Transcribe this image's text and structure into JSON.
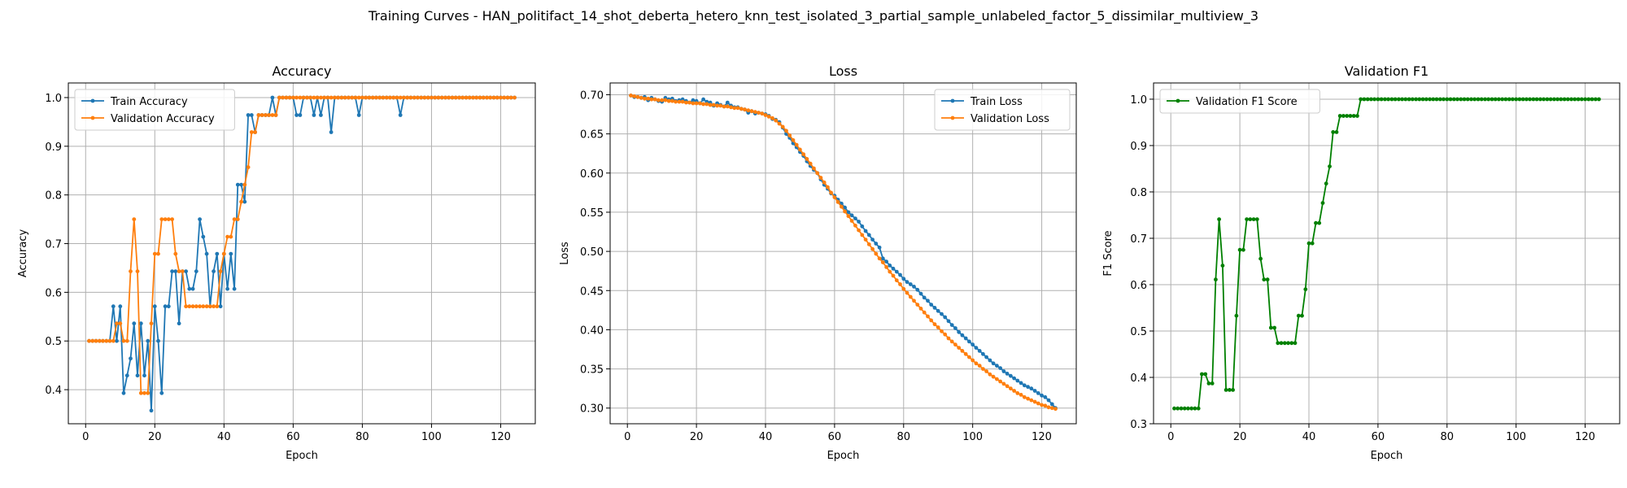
{
  "page_title": "Training Curves - HAN_politifact_14_shot_deberta_hetero_knn_test_isolated_3_partial_sample_unlabeled_factor_5_dissimilar_multiview_3",
  "chart_data": [
    {
      "type": "line",
      "title": "Accuracy",
      "xlabel": "Epoch",
      "ylabel": "Accuracy",
      "xlim": [
        -5,
        130
      ],
      "ylim": [
        0.33,
        1.03
      ],
      "xticks": [
        0,
        20,
        40,
        60,
        80,
        100,
        120
      ],
      "yticks": [
        0.4,
        0.5,
        0.6,
        0.7,
        0.8,
        0.9,
        1.0
      ],
      "ytick_labels": [
        "0.4",
        "0.5",
        "0.6",
        "0.7",
        "0.8",
        "0.9",
        "1.0"
      ],
      "grid": true,
      "legend": "upper-left",
      "x_start": 1,
      "series": [
        {
          "name": "Train Accuracy",
          "color": "#1f77b4",
          "values": [
            0.5,
            0.5,
            0.5,
            0.5,
            0.5,
            0.5,
            0.5,
            0.571,
            0.5,
            0.571,
            0.393,
            0.429,
            0.464,
            0.536,
            0.429,
            0.536,
            0.429,
            0.5,
            0.357,
            0.571,
            0.5,
            0.393,
            0.571,
            0.571,
            0.643,
            0.643,
            0.536,
            0.643,
            0.643,
            0.607,
            0.607,
            0.643,
            0.75,
            0.714,
            0.679,
            0.571,
            0.643,
            0.679,
            0.571,
            0.679,
            0.607,
            0.679,
            0.607,
            0.821,
            0.821,
            0.786,
            0.964,
            0.964,
            0.929,
            0.964,
            0.964,
            0.964,
            0.964,
            1.0,
            0.964,
            1.0,
            1.0,
            1.0,
            1.0,
            1.0,
            0.964,
            0.964,
            1.0,
            1.0,
            1.0,
            0.964,
            1.0,
            0.964,
            1.0,
            1.0,
            0.929,
            1.0,
            1.0,
            1.0,
            1.0,
            1.0,
            1.0,
            1.0,
            0.964,
            1.0,
            1.0,
            1.0,
            1.0,
            1.0,
            1.0,
            1.0,
            1.0,
            1.0,
            1.0,
            1.0,
            0.964,
            1.0,
            1.0,
            1.0,
            1.0,
            1.0,
            1.0,
            1.0,
            1.0,
            1.0,
            1.0,
            1.0,
            1.0,
            1.0,
            1.0,
            1.0,
            1.0,
            1.0,
            1.0,
            1.0,
            1.0,
            1.0,
            1.0,
            1.0,
            1.0,
            1.0,
            1.0,
            1.0,
            1.0,
            1.0,
            1.0,
            1.0,
            1.0,
            1.0
          ]
        },
        {
          "name": "Validation Accuracy",
          "color": "#ff7f0e",
          "values": [
            0.5,
            0.5,
            0.5,
            0.5,
            0.5,
            0.5,
            0.5,
            0.5,
            0.536,
            0.536,
            0.5,
            0.5,
            0.643,
            0.75,
            0.643,
            0.393,
            0.393,
            0.393,
            0.536,
            0.679,
            0.679,
            0.75,
            0.75,
            0.75,
            0.75,
            0.679,
            0.643,
            0.643,
            0.571,
            0.571,
            0.571,
            0.571,
            0.571,
            0.571,
            0.571,
            0.571,
            0.571,
            0.571,
            0.643,
            0.679,
            0.714,
            0.714,
            0.75,
            0.75,
            0.786,
            0.821,
            0.857,
            0.929,
            0.929,
            0.964,
            0.964,
            0.964,
            0.964,
            0.964,
            0.964,
            1.0,
            1.0,
            1.0,
            1.0,
            1.0,
            1.0,
            1.0,
            1.0,
            1.0,
            1.0,
            1.0,
            1.0,
            1.0,
            1.0,
            1.0,
            1.0,
            1.0,
            1.0,
            1.0,
            1.0,
            1.0,
            1.0,
            1.0,
            1.0,
            1.0,
            1.0,
            1.0,
            1.0,
            1.0,
            1.0,
            1.0,
            1.0,
            1.0,
            1.0,
            1.0,
            1.0,
            1.0,
            1.0,
            1.0,
            1.0,
            1.0,
            1.0,
            1.0,
            1.0,
            1.0,
            1.0,
            1.0,
            1.0,
            1.0,
            1.0,
            1.0,
            1.0,
            1.0,
            1.0,
            1.0,
            1.0,
            1.0,
            1.0,
            1.0,
            1.0,
            1.0,
            1.0,
            1.0,
            1.0,
            1.0,
            1.0,
            1.0,
            1.0,
            1.0
          ]
        }
      ]
    },
    {
      "type": "line",
      "title": "Loss",
      "xlabel": "Epoch",
      "ylabel": "Loss",
      "xlim": [
        -5,
        130
      ],
      "ylim": [
        0.28,
        0.715
      ],
      "xticks": [
        0,
        20,
        40,
        60,
        80,
        100,
        120
      ],
      "yticks": [
        0.3,
        0.35,
        0.4,
        0.45,
        0.5,
        0.55,
        0.6,
        0.65,
        0.7
      ],
      "ytick_labels": [
        "0.30",
        "0.35",
        "0.40",
        "0.45",
        "0.50",
        "0.55",
        "0.60",
        "0.65",
        "0.70"
      ],
      "grid": true,
      "legend": "upper-right",
      "x_start": 1,
      "series": [
        {
          "name": "Train Loss",
          "color": "#1f77b4",
          "values": [
            0.699,
            0.697,
            0.697,
            0.696,
            0.697,
            0.693,
            0.696,
            0.694,
            0.692,
            0.691,
            0.696,
            0.694,
            0.695,
            0.692,
            0.693,
            0.694,
            0.692,
            0.69,
            0.693,
            0.692,
            0.689,
            0.694,
            0.691,
            0.69,
            0.686,
            0.689,
            0.687,
            0.685,
            0.69,
            0.686,
            0.684,
            0.684,
            0.682,
            0.681,
            0.677,
            0.679,
            0.676,
            0.677,
            0.676,
            0.675,
            0.673,
            0.669,
            0.668,
            0.665,
            0.658,
            0.65,
            0.645,
            0.638,
            0.633,
            0.627,
            0.622,
            0.615,
            0.609,
            0.604,
            0.6,
            0.592,
            0.585,
            0.58,
            0.574,
            0.571,
            0.566,
            0.561,
            0.556,
            0.55,
            0.546,
            0.542,
            0.538,
            0.532,
            0.526,
            0.521,
            0.515,
            0.51,
            0.505,
            0.491,
            0.487,
            0.482,
            0.478,
            0.474,
            0.47,
            0.465,
            0.461,
            0.458,
            0.455,
            0.451,
            0.446,
            0.441,
            0.437,
            0.432,
            0.428,
            0.424,
            0.42,
            0.416,
            0.411,
            0.406,
            0.402,
            0.397,
            0.393,
            0.389,
            0.385,
            0.381,
            0.377,
            0.373,
            0.369,
            0.365,
            0.361,
            0.357,
            0.354,
            0.351,
            0.347,
            0.344,
            0.341,
            0.338,
            0.335,
            0.332,
            0.329,
            0.327,
            0.325,
            0.322,
            0.319,
            0.316,
            0.314,
            0.31,
            0.305,
            0.3
          ]
        },
        {
          "name": "Validation Loss",
          "color": "#ff7f0e",
          "values": [
            0.699,
            0.698,
            0.697,
            0.696,
            0.695,
            0.695,
            0.694,
            0.694,
            0.693,
            0.693,
            0.693,
            0.692,
            0.692,
            0.691,
            0.691,
            0.691,
            0.69,
            0.69,
            0.689,
            0.689,
            0.689,
            0.688,
            0.688,
            0.687,
            0.687,
            0.686,
            0.686,
            0.685,
            0.685,
            0.684,
            0.683,
            0.683,
            0.682,
            0.681,
            0.68,
            0.679,
            0.678,
            0.677,
            0.676,
            0.674,
            0.672,
            0.67,
            0.667,
            0.663,
            0.659,
            0.654,
            0.648,
            0.642,
            0.636,
            0.63,
            0.624,
            0.618,
            0.612,
            0.606,
            0.6,
            0.594,
            0.588,
            0.582,
            0.575,
            0.569,
            0.563,
            0.557,
            0.551,
            0.545,
            0.539,
            0.533,
            0.527,
            0.521,
            0.515,
            0.509,
            0.503,
            0.497,
            0.491,
            0.486,
            0.48,
            0.474,
            0.469,
            0.463,
            0.458,
            0.452,
            0.447,
            0.442,
            0.437,
            0.432,
            0.427,
            0.422,
            0.417,
            0.412,
            0.407,
            0.403,
            0.398,
            0.394,
            0.389,
            0.385,
            0.381,
            0.377,
            0.373,
            0.369,
            0.365,
            0.361,
            0.357,
            0.354,
            0.35,
            0.347,
            0.343,
            0.34,
            0.337,
            0.334,
            0.331,
            0.328,
            0.325,
            0.322,
            0.319,
            0.317,
            0.314,
            0.312,
            0.31,
            0.308,
            0.306,
            0.304,
            0.303,
            0.301,
            0.3,
            0.299
          ]
        }
      ]
    },
    {
      "type": "line",
      "title": "Validation F1",
      "xlabel": "Epoch",
      "ylabel": "F1 Score",
      "xlim": [
        -5,
        130
      ],
      "ylim": [
        0.3,
        1.035
      ],
      "xticks": [
        0,
        20,
        40,
        60,
        80,
        100,
        120
      ],
      "yticks": [
        0.3,
        0.4,
        0.5,
        0.6,
        0.7,
        0.8,
        0.9,
        1.0
      ],
      "ytick_labels": [
        "0.3",
        "0.4",
        "0.5",
        "0.6",
        "0.7",
        "0.8",
        "0.9",
        "1.0"
      ],
      "grid": true,
      "legend": "upper-left",
      "x_start": 1,
      "series": [
        {
          "name": "Validation F1 Score",
          "color": "#008000",
          "values": [
            0.333,
            0.333,
            0.333,
            0.333,
            0.333,
            0.333,
            0.333,
            0.333,
            0.407,
            0.407,
            0.387,
            0.387,
            0.611,
            0.741,
            0.641,
            0.373,
            0.373,
            0.373,
            0.533,
            0.675,
            0.675,
            0.741,
            0.741,
            0.741,
            0.741,
            0.656,
            0.611,
            0.611,
            0.507,
            0.507,
            0.474,
            0.474,
            0.474,
            0.474,
            0.474,
            0.474,
            0.533,
            0.533,
            0.59,
            0.689,
            0.689,
            0.733,
            0.733,
            0.776,
            0.818,
            0.855,
            0.929,
            0.929,
            0.964,
            0.964,
            0.964,
            0.964,
            0.964,
            0.964,
            1.0,
            1.0,
            1.0,
            1.0,
            1.0,
            1.0,
            1.0,
            1.0,
            1.0,
            1.0,
            1.0,
            1.0,
            1.0,
            1.0,
            1.0,
            1.0,
            1.0,
            1.0,
            1.0,
            1.0,
            1.0,
            1.0,
            1.0,
            1.0,
            1.0,
            1.0,
            1.0,
            1.0,
            1.0,
            1.0,
            1.0,
            1.0,
            1.0,
            1.0,
            1.0,
            1.0,
            1.0,
            1.0,
            1.0,
            1.0,
            1.0,
            1.0,
            1.0,
            1.0,
            1.0,
            1.0,
            1.0,
            1.0,
            1.0,
            1.0,
            1.0,
            1.0,
            1.0,
            1.0,
            1.0,
            1.0,
            1.0,
            1.0,
            1.0,
            1.0,
            1.0,
            1.0,
            1.0,
            1.0,
            1.0,
            1.0,
            1.0,
            1.0,
            1.0,
            1.0
          ]
        }
      ]
    }
  ]
}
